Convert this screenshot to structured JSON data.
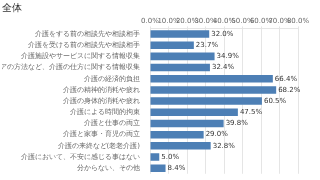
{
  "chart_data": {
    "type": "bar",
    "orientation": "horizontal",
    "title": "全体",
    "categories": [
      "介護をする前の相談先や相談相手",
      "介護を受ける前の相談先や相談相手",
      "介護施設やサービスに関する情報収集",
      "介護ケアの方法など、介護の仕方に関する情報収集",
      "介護の経済的負担",
      "介護の精神的消耗や疲れ",
      "介護の身体的消耗や疲れ",
      "介護による時間的拘束",
      "介護と仕事の両立",
      "介護と家事・育児の両立",
      "介護の来終など(老老介護)",
      "介護において、不安に感じる事はない",
      "分からない、その他"
    ],
    "values": [
      32.0,
      23.7,
      34.9,
      32.4,
      66.4,
      68.2,
      60.5,
      47.5,
      39.8,
      29.0,
      32.8,
      5.0,
      8.4
    ],
    "value_labels": [
      "32.0%",
      "23.7%",
      "34.9%",
      "32.4%",
      "66.4%",
      "68.2%",
      "60.5%",
      "47.5%",
      "39.8%",
      "29.0%",
      "32.8%",
      "5.0%",
      "8.4%"
    ],
    "data_labels": true,
    "color": "#4d7fb5",
    "xlim": [
      0,
      80
    ],
    "xticks": [
      {
        "value": 0,
        "label": "0.0%"
      },
      {
        "value": 10,
        "label": "10.0%"
      },
      {
        "value": 20,
        "label": "20.0%"
      },
      {
        "value": 30,
        "label": "30.0%"
      },
      {
        "value": 40,
        "label": "40.0%"
      },
      {
        "value": 50,
        "label": "50.0%"
      },
      {
        "value": 60,
        "label": "60.0%"
      },
      {
        "value": 70,
        "label": "70.0%"
      },
      {
        "value": 80,
        "label": "80.0%"
      }
    ],
    "grid": true
  }
}
